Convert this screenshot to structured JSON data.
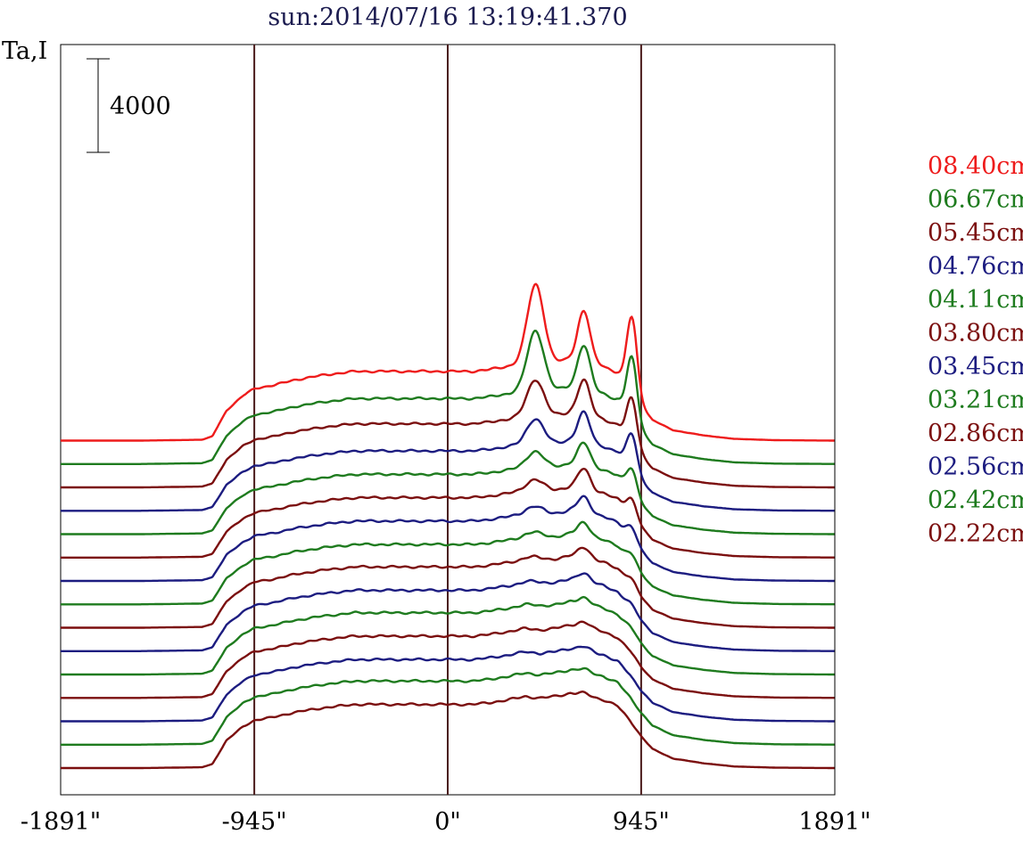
{
  "chart_data": {
    "type": "line",
    "title": "sun:2014/07/16 13:19:41.370",
    "ylabel": "Ta,I",
    "scale_bar_label": "4000",
    "x_tick_labels": [
      "-1891\"",
      "-945\"",
      "0\"",
      "945\"",
      "1891\""
    ],
    "x_ticks": [
      -1891,
      -945,
      0,
      945,
      1891
    ],
    "xlim": [
      -1891,
      1891
    ],
    "vertical_lines_at": [
      -945,
      0,
      945
    ],
    "grid": false,
    "legend_position": "right",
    "shape_points": [
      [
        -1891,
        0.0
      ],
      [
        -1500,
        0.0
      ],
      [
        -1350,
        0.005
      ],
      [
        -1200,
        0.01
      ],
      [
        -1150,
        0.05
      ],
      [
        -1080,
        0.35
      ],
      [
        -1000,
        0.52
      ],
      [
        -945,
        0.6
      ],
      [
        -900,
        0.62
      ],
      [
        -850,
        0.64
      ],
      [
        -750,
        0.7
      ],
      [
        -600,
        0.76
      ],
      [
        -450,
        0.8
      ],
      [
        -300,
        0.8
      ],
      [
        -150,
        0.8
      ],
      [
        0,
        0.8
      ],
      [
        120,
        0.8
      ],
      [
        200,
        0.82
      ],
      [
        300,
        0.86
      ],
      [
        380,
        0.9
      ],
      [
        450,
        0.88
      ],
      [
        520,
        0.9
      ],
      [
        600,
        0.94
      ],
      [
        680,
        0.9
      ],
      [
        760,
        0.86
      ],
      [
        830,
        0.78
      ],
      [
        890,
        0.6
      ],
      [
        945,
        0.4
      ],
      [
        1000,
        0.24
      ],
      [
        1100,
        0.12
      ],
      [
        1250,
        0.06
      ],
      [
        1400,
        0.02
      ],
      [
        1600,
        0.005
      ],
      [
        1891,
        0.0
      ]
    ],
    "flare_peaks_at": [
      430,
      665,
      900
    ],
    "series": [
      {
        "name": "08.40cm",
        "color": "#ee1c1c",
        "profile_amplitude": 3700,
        "peak_amplitudes": [
          3400,
          2200,
          3200
        ]
      },
      {
        "name": "06.67cm",
        "color": "#1e7b1e",
        "profile_amplitude": 3500,
        "peak_amplitudes": [
          2600,
          1900,
          2600
        ]
      },
      {
        "name": "05.45cm",
        "color": "#7b0f0f",
        "profile_amplitude": 3400,
        "peak_amplitudes": [
          1600,
          1500,
          1900
        ]
      },
      {
        "name": "04.76cm",
        "color": "#1c1c80",
        "profile_amplitude": 3200,
        "peak_amplitudes": [
          1100,
          1300,
          1500
        ]
      },
      {
        "name": "04.11cm",
        "color": "#1e7b1e",
        "profile_amplitude": 3200,
        "peak_amplitudes": [
          700,
          1000,
          1000
        ]
      },
      {
        "name": "03.80cm",
        "color": "#7b0f0f",
        "profile_amplitude": 3200,
        "peak_amplitudes": [
          500,
          900,
          700
        ]
      },
      {
        "name": "03.45cm",
        "color": "#1c1c80",
        "profile_amplitude": 3200,
        "peak_amplitudes": [
          350,
          700,
          500
        ]
      },
      {
        "name": "03.21cm",
        "color": "#1e7b1e",
        "profile_amplitude": 3200,
        "peak_amplitudes": [
          250,
          600,
          350
        ]
      },
      {
        "name": "02.86cm",
        "color": "#7b0f0f",
        "profile_amplitude": 3250,
        "peak_amplitudes": [
          150,
          500,
          250
        ]
      },
      {
        "name": "02.56cm",
        "color": "#1c1c80",
        "profile_amplitude": 3250,
        "peak_amplitudes": [
          100,
          400,
          150
        ]
      },
      {
        "name": "02.42cm",
        "color": "#1e7b1e",
        "profile_amplitude": 3300,
        "peak_amplitudes": [
          50,
          300,
          100
        ]
      },
      {
        "name": "02.22cm",
        "color": "#7b0f0f",
        "profile_amplitude": 3300,
        "peak_amplitudes": [
          0,
          250,
          50
        ]
      },
      {
        "name": "",
        "color": "#1c1c80",
        "profile_amplitude": 3300,
        "peak_amplitudes": [
          0,
          200,
          0
        ]
      },
      {
        "name": "",
        "color": "#1e7b1e",
        "profile_amplitude": 3400,
        "peak_amplitudes": [
          0,
          150,
          0
        ]
      },
      {
        "name": "",
        "color": "#7b0f0f",
        "profile_amplitude": 3400,
        "peak_amplitudes": [
          0,
          120,
          0
        ]
      }
    ],
    "series_offsets": [
      0,
      1000,
      2000,
      3000,
      4000,
      5000,
      6000,
      7000,
      8000,
      9000,
      10000,
      11000,
      12000,
      13000,
      14000
    ],
    "colors": {
      "axis": "#000000",
      "vertical_line": "#4a1a1a",
      "title": "#1c1c50"
    }
  }
}
